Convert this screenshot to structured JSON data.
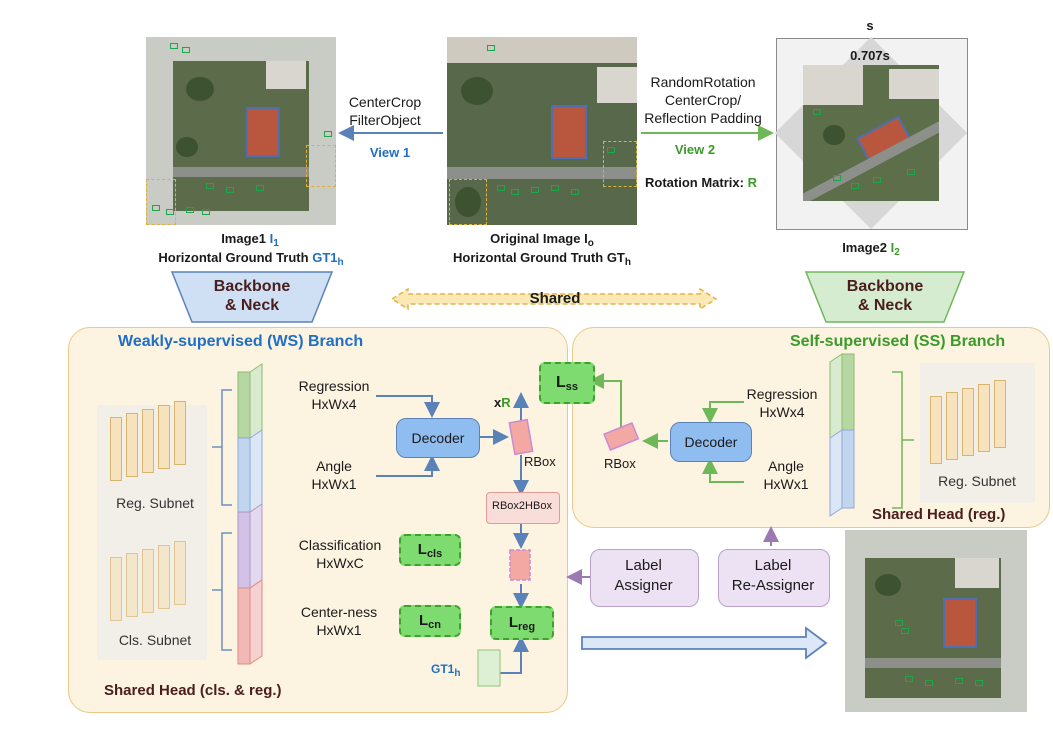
{
  "images": {
    "view1_caption_line1_pre": "Image1 ",
    "view1_caption_line1_sym": "I",
    "view1_caption_line1_sub": "1",
    "view1_caption_line2_pre": "Horizontal Ground Truth ",
    "view1_caption_line2_sym": "GT1",
    "view1_caption_line2_sub": "h",
    "orig_caption_line1_pre": "Original Image I",
    "orig_caption_line1_sub": "o",
    "orig_caption_line2_pre": "Horizontal Ground Truth GT",
    "orig_caption_line2_sub": "h",
    "view2_caption_pre": "Image2 ",
    "view2_caption_sym": "I",
    "view2_caption_sub": "2",
    "s_label": "s",
    "s707_label": "0.707s"
  },
  "arrows": {
    "left_op_line1": "CenterCrop",
    "left_op_line2": "FilterObject",
    "view1_label": "View 1",
    "right_op_line1": "RandomRotation",
    "right_op_line2": "CenterCrop/",
    "right_op_line3": "Reflection Padding",
    "view2_label": "View 2",
    "rotation_pre": "Rotation Matrix: ",
    "rotation_sym": "R",
    "shared_label": "Shared"
  },
  "backbones": {
    "left_line1": "Backbone",
    "left_line2": "& Neck",
    "right_line1": "Backbone",
    "right_line2": "& Neck"
  },
  "ws_branch": {
    "title": "Weakly-supervised (WS) Branch",
    "reg_subnet": "Reg. Subnet",
    "cls_subnet": "Cls. Subnet",
    "regression_line1": "Regression",
    "regression_line2": "HxWx4",
    "angle_line1": "Angle",
    "angle_line2": "HxWx1",
    "classification_line1": "Classification",
    "classification_line2": "HxWxC",
    "centerness_line1": "Center-ness",
    "centerness_line2": "HxWx1",
    "decoder": "Decoder",
    "rbox": "RBox",
    "rbox2hbox": "RBox2HBox",
    "xr_pre": "x",
    "xr_sym": "R",
    "gt1h_pre": "GT1",
    "gt1h_sub": "h",
    "footer": "Shared Head (cls. & reg.)"
  },
  "losses": {
    "lss_pre": "L",
    "lss_sub": "ss",
    "lcls_pre": "L",
    "lcls_sub": "cls",
    "lcn_pre": "L",
    "lcn_sub": "cn",
    "lreg_pre": "L",
    "lreg_sub": "reg"
  },
  "ss_branch": {
    "title": "Self-supervised (SS) Branch",
    "regression_line1": "Regression",
    "regression_line2": "HxWx4",
    "angle_line1": "Angle",
    "angle_line2": "HxWx1",
    "decoder": "Decoder",
    "rbox": "RBox",
    "reg_subnet": "Reg. Subnet",
    "footer": "Shared Head (reg.)"
  },
  "assigners": {
    "label_assigner_line1": "Label",
    "label_assigner_line2": "Assigner",
    "label_reassigner_line1": "Label",
    "label_reassigner_line2": "Re-Assigner"
  },
  "colors": {
    "ws_blue": "#1f6fc4",
    "ss_green": "#3a9a2a",
    "panel_fill": "#fdf3e1",
    "panel_border": "#e8c98a",
    "arrow_blue": "#5b82b8",
    "decoder_fill": "#8fbdf0"
  }
}
